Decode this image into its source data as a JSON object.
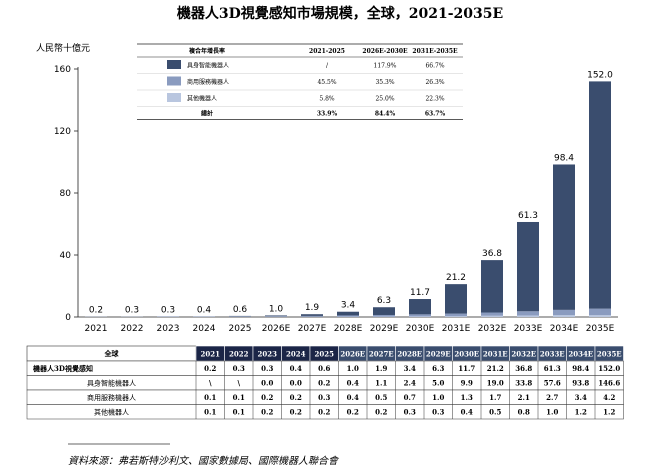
{
  "title": "機器人3D視覺感知市場規模，全球，2021-2035E",
  "source": "資料來源：弗若斯特沙利文、國家數據局、國際機器人聯合會",
  "colors": {
    "embodied": "#3a4d6e",
    "service": "#8a9bbf",
    "other": "#b9c6df",
    "future_header": "#3a4d6e",
    "hist_header": "#1b2547"
  },
  "chart_data": {
    "type": "bar",
    "stacked": true,
    "title": "機器人3D視覺感知市場規模，全球，2021-2035E",
    "ylabel": "人民幣十億元",
    "ylim": [
      0,
      160
    ],
    "yticks": [
      0,
      40,
      80,
      120,
      160
    ],
    "grid": false,
    "categories": [
      "2021",
      "2022",
      "2023",
      "2024",
      "2025",
      "2026E",
      "2027E",
      "2028E",
      "2029E",
      "2030E",
      "2031E",
      "2032E",
      "2033E",
      "2034E",
      "2035E"
    ],
    "totals": [
      0.2,
      0.3,
      0.3,
      0.4,
      0.6,
      1.0,
      1.9,
      3.4,
      6.3,
      11.7,
      21.2,
      36.8,
      61.3,
      98.4,
      152.0
    ],
    "total_labels": [
      "0.2",
      "0.3",
      "0.3",
      "0.4",
      "0.6",
      "1.0",
      "1.9",
      "3.4",
      "6.3",
      "11.7",
      "21.2",
      "36.8",
      "61.3",
      "98.4",
      "152.0"
    ],
    "series": [
      {
        "name": "具身智能機器人",
        "values": [
          0.0,
          0.0,
          0.0,
          0.0,
          0.2,
          0.4,
          1.1,
          2.4,
          5.0,
          9.9,
          19.0,
          33.8,
          57.6,
          93.8,
          146.6
        ]
      },
      {
        "name": "商用服務機器人",
        "values": [
          0.1,
          0.1,
          0.2,
          0.2,
          0.3,
          0.4,
          0.5,
          0.7,
          1.0,
          1.3,
          1.7,
          2.1,
          2.7,
          3.4,
          4.2
        ]
      },
      {
        "name": "其他機器人",
        "values": [
          0.1,
          0.1,
          0.2,
          0.2,
          0.2,
          0.2,
          0.2,
          0.3,
          0.3,
          0.4,
          0.5,
          0.8,
          1.0,
          1.2,
          1.2
        ]
      }
    ]
  },
  "cagr_table": {
    "header": [
      "複合年增長率",
      "2021-2025",
      "2026E-2030E",
      "2031E-2035E"
    ],
    "rows": [
      {
        "label": "具身智能機器人",
        "values": [
          "/",
          "117.9%",
          "66.7%"
        ]
      },
      {
        "label": "商用服務機器人",
        "values": [
          "45.5%",
          "35.3%",
          "26.3%"
        ]
      },
      {
        "label": "其他機器人",
        "values": [
          "5.8%",
          "25.0%",
          "22.3%"
        ]
      }
    ],
    "total": {
      "label": "總計",
      "values": [
        "33.9%",
        "84.4%",
        "63.7%"
      ]
    }
  },
  "data_table": {
    "corner": "全球",
    "years": [
      "2021",
      "2022",
      "2023",
      "2024",
      "2025",
      "2026E",
      "2027E",
      "2028E",
      "2029E",
      "2030E",
      "2031E",
      "2032E",
      "2033E",
      "2034E",
      "2035E"
    ],
    "rows": [
      {
        "label": "機器人3D視覺感知",
        "bold": true,
        "values": [
          "0.2",
          "0.3",
          "0.3",
          "0.4",
          "0.6",
          "1.0",
          "1.9",
          "3.4",
          "6.3",
          "11.7",
          "21.2",
          "36.8",
          "61.3",
          "98.4",
          "152.0"
        ]
      },
      {
        "label": "具身智能機器人",
        "bold": false,
        "values": [
          "\\",
          "\\",
          "0.0",
          "0.0",
          "0.2",
          "0.4",
          "1.1",
          "2.4",
          "5.0",
          "9.9",
          "19.0",
          "33.8",
          "57.6",
          "93.8",
          "146.6"
        ]
      },
      {
        "label": "商用服務機器人",
        "bold": false,
        "values": [
          "0.1",
          "0.1",
          "0.2",
          "0.2",
          "0.3",
          "0.4",
          "0.5",
          "0.7",
          "1.0",
          "1.3",
          "1.7",
          "2.1",
          "2.7",
          "3.4",
          "4.2"
        ]
      },
      {
        "label": "其他機器人",
        "bold": false,
        "values": [
          "0.1",
          "0.1",
          "0.2",
          "0.2",
          "0.2",
          "0.2",
          "0.2",
          "0.3",
          "0.3",
          "0.4",
          "0.5",
          "0.8",
          "1.0",
          "1.2",
          "1.2"
        ]
      }
    ]
  }
}
